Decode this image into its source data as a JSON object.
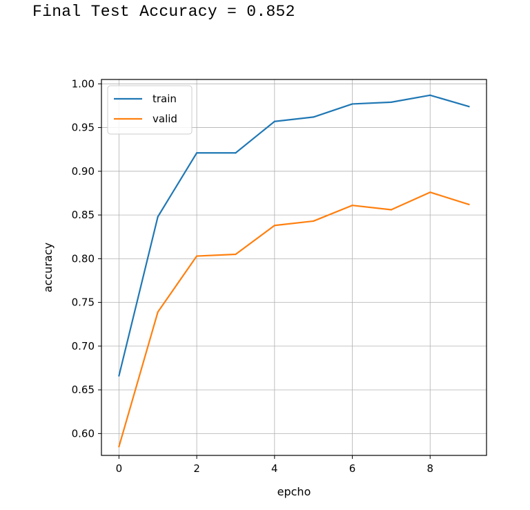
{
  "output": {
    "text": "Final Test Accuracy = 0.852"
  },
  "chart_data": {
    "type": "line",
    "title": "",
    "xlabel": "epcho",
    "ylabel": "accuracy",
    "x": [
      0,
      1,
      2,
      3,
      4,
      5,
      6,
      7,
      8,
      9
    ],
    "xlim": [
      -0.45,
      9.45
    ],
    "ylim": [
      0.575,
      1.005
    ],
    "xticks": [
      0,
      2,
      4,
      6,
      8
    ],
    "xtick_labels": [
      "0",
      "2",
      "4",
      "6",
      "8"
    ],
    "yticks": [
      0.6,
      0.65,
      0.7,
      0.75,
      0.8,
      0.85,
      0.9,
      0.95,
      1.0
    ],
    "ytick_labels": [
      "0.60",
      "0.65",
      "0.70",
      "0.75",
      "0.80",
      "0.85",
      "0.90",
      "0.95",
      "1.00"
    ],
    "grid": true,
    "legend_position": "top-left",
    "series": [
      {
        "name": "train",
        "color": "#1f77b4",
        "values": [
          0.666,
          0.848,
          0.921,
          0.921,
          0.957,
          0.962,
          0.977,
          0.979,
          0.987,
          0.974
        ]
      },
      {
        "name": "valid",
        "color": "#ff7f0e",
        "values": [
          0.585,
          0.739,
          0.803,
          0.805,
          0.838,
          0.843,
          0.861,
          0.856,
          0.876,
          0.862
        ]
      }
    ]
  }
}
